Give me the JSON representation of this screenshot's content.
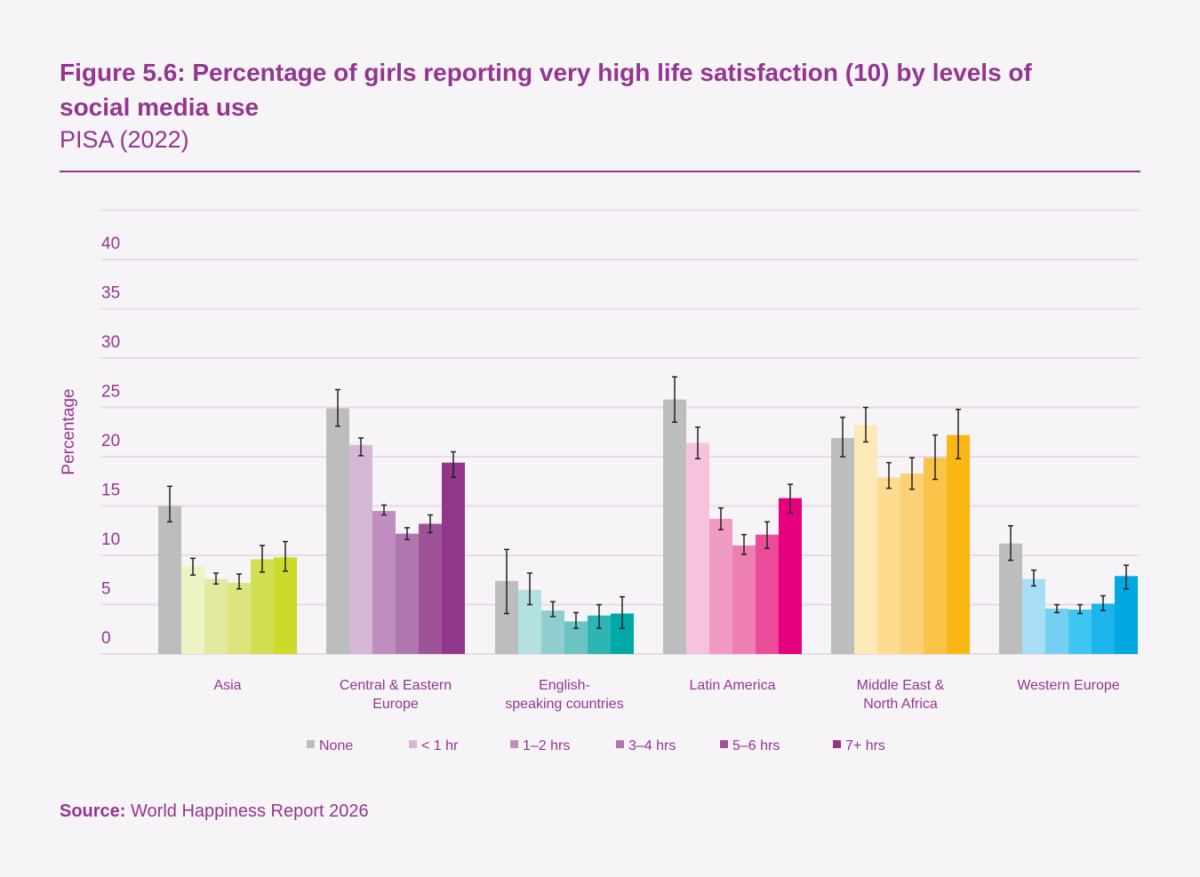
{
  "title": "Figure 5.6: Percentage of girls reporting very high life satisfaction (10) by levels of social media use",
  "subtitle": "PISA (2022)",
  "source_label": "Source:",
  "source_text": "World Happiness Report 2026",
  "chart_data": {
    "type": "bar",
    "ylabel": "Percentage",
    "ylim": [
      0,
      45
    ],
    "yticks": [
      0,
      5,
      10,
      15,
      20,
      25,
      30,
      35,
      40
    ],
    "grid": true,
    "legend_position": "bottom",
    "categories": [
      "Asia",
      "Central & Eastern Europe",
      "English-speaking countries",
      "Latin America",
      "Middle East & North Africa",
      "Western Europe"
    ],
    "category_lines": [
      [
        "Asia"
      ],
      [
        "Central & Eastern",
        "Europe"
      ],
      [
        "English-",
        "speaking countries"
      ],
      [
        "Latin America"
      ],
      [
        "Middle East &",
        "North Africa"
      ],
      [
        "Western Europe"
      ]
    ],
    "series": [
      {
        "name": "None",
        "values": [
          15.0,
          24.9,
          7.4,
          25.8,
          21.9,
          11.2
        ],
        "error": [
          [
            13.4,
            17.0
          ],
          [
            23.1,
            26.8
          ],
          [
            4.1,
            10.6
          ],
          [
            23.5,
            28.1
          ],
          [
            20.0,
            24.0
          ],
          [
            9.5,
            13.0
          ]
        ]
      },
      {
        "name": "< 1 hr",
        "values": [
          8.9,
          21.2,
          6.5,
          21.4,
          23.2,
          7.6
        ],
        "error": [
          [
            8.0,
            9.7
          ],
          [
            20.1,
            21.9
          ],
          [
            5.0,
            8.2
          ],
          [
            19.8,
            23.0
          ],
          [
            21.5,
            25.0
          ],
          [
            6.9,
            8.5
          ]
        ]
      },
      {
        "name": "1–2 hrs",
        "values": [
          7.6,
          14.5,
          4.4,
          13.7,
          17.9,
          4.6
        ],
        "error": [
          [
            7.1,
            8.2
          ],
          [
            14.1,
            15.1
          ],
          [
            3.8,
            5.3
          ],
          [
            12.6,
            14.8
          ],
          [
            16.8,
            19.4
          ],
          [
            4.2,
            5.0
          ]
        ]
      },
      {
        "name": "3–4 hrs",
        "values": [
          7.2,
          12.2,
          3.3,
          11.0,
          18.3,
          4.5
        ],
        "error": [
          [
            6.6,
            8.1
          ],
          [
            11.6,
            12.8
          ],
          [
            2.6,
            4.2
          ],
          [
            10.1,
            12.1
          ],
          [
            16.7,
            19.9
          ],
          [
            4.1,
            5.0
          ]
        ]
      },
      {
        "name": "5–6 hrs",
        "values": [
          9.6,
          13.2,
          3.9,
          12.1,
          19.9,
          5.1
        ],
        "error": [
          [
            8.3,
            11.0
          ],
          [
            12.3,
            14.1
          ],
          [
            2.6,
            5.0
          ],
          [
            10.7,
            13.4
          ],
          [
            17.7,
            22.2
          ],
          [
            4.4,
            5.9
          ]
        ]
      },
      {
        "name": "7+ hrs",
        "values": [
          9.8,
          19.4,
          4.1,
          15.8,
          22.2,
          7.9
        ],
        "error": [
          [
            8.4,
            11.4
          ],
          [
            17.9,
            20.5
          ],
          [
            2.6,
            5.8
          ],
          [
            14.3,
            17.2
          ],
          [
            19.8,
            24.8
          ],
          [
            6.6,
            9.0
          ]
        ]
      }
    ],
    "none_color": "#bcbdbf",
    "group_colors": [
      [
        "#bcbdbf",
        "#eef3c4",
        "#e3e99e",
        "#dbe47d",
        "#d2df52",
        "#cbdb2a"
      ],
      [
        "#bcbdbf",
        "#d5b7d6",
        "#bf8dbf",
        "#b077ae",
        "#9e5399",
        "#92368c"
      ],
      [
        "#bcbdbf",
        "#b5e0e0",
        "#8fcdce",
        "#6cc3c4",
        "#2db5b6",
        "#00a9a6"
      ],
      [
        "#bcbdbf",
        "#f7c2dc",
        "#f09bc3",
        "#ee7fb1",
        "#ea4c99",
        "#e6007e"
      ],
      [
        "#bcbdbf",
        "#fde8b8",
        "#fddc90",
        "#fbd077",
        "#fac34a",
        "#f7b814"
      ],
      [
        "#bcbdbf",
        "#a7def5",
        "#75cff0",
        "#3ec5f0",
        "#1cb4ea",
        "#00a8e2"
      ]
    ],
    "legend_colors": [
      "#bcbdbf",
      "#d5b7d6",
      "#bf8dbf",
      "#b077ae",
      "#9e5399",
      "#92368c"
    ]
  }
}
